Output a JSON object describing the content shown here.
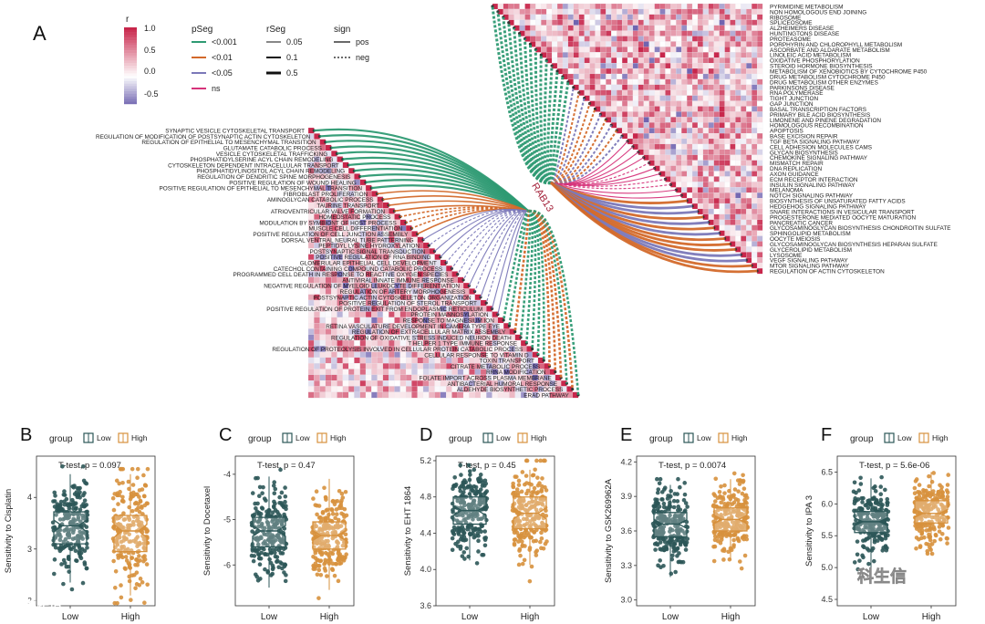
{
  "panel_a": {
    "letter": "A",
    "center_label": "RAB13",
    "legends": {
      "r": {
        "title": "r",
        "ticks": [
          "1.0",
          "0.5",
          "0.0",
          "-0.5"
        ]
      },
      "pSeg": {
        "title": "pSeg",
        "items": [
          {
            "label": "<0.001",
            "color": "#2e9a73"
          },
          {
            "label": "<0.01",
            "color": "#d3692a"
          },
          {
            "label": "<0.05",
            "color": "#7b78b8"
          },
          {
            "label": "ns",
            "color": "#d6337a"
          }
        ]
      },
      "rSeg": {
        "title": "rSeg",
        "items": [
          "0.05",
          "0.1",
          "0.5"
        ]
      },
      "sign": {
        "title": "sign",
        "items": [
          "pos",
          "neg"
        ]
      }
    },
    "left_terms": [
      "SYNAPTIC VESICLE CYTOSKELETAL TRANSPORT",
      "REGULATION OF MODIFICATION OF POSTSYNAPTIC ACTIN CYTOSKELETON",
      "REGULATION OF EPITHELIAL TO MESENCHYMAL TRANSITION",
      "GLUTAMATE CATABOLIC PROCESS",
      "VESICLE CYTOSKELETAL TRAFFICKING",
      "PHOSPHATIDYLSERINE ACYL CHAIN REMODELING",
      "CYTOSKELETON DEPENDENT INTRACELLULAR TRANSPORT",
      "PHOSPHATIDYLINOSITOL ACYL CHAIN REMODELING",
      "REGULATION OF DENDRITIC SPINE MORPHOGENESIS",
      "POSITIVE REGULATION OF WOUND HEALING",
      "POSITIVE REGULATION OF EPITHELIAL TO MESENCHYMAL TRANSITION",
      "FIBROBLAST PROLIFERATION",
      "AMINOGLYCAN CATABOLIC PROCESS",
      "TAURINE TRANSPORT",
      "ATRIOVENTRICULAR VALVE FORMATION",
      "HOMEOSTATIC PROCESS",
      "MODULATION BY SYMBIONT OF HOST PROCESS",
      "MUSCLE CELL DIFFERENTIATION",
      "POSITIVE REGULATION OF CELL JUNCTION ASSEMBLY",
      "DORSAL VENTRAL NEURAL TUBE PATTERNING",
      "PEPTIDYL LYSINE HYDROXYLATION",
      "POSTSYNAPTIC SIGNAL TRANSDUCTION",
      "POSITIVE REGULATION OF RNA BINDING",
      "GLOMERULAR EPITHELIAL CELL DEVELOPMENT",
      "CATECHOL CONTAINING COMPOUND CATABOLIC PROCESS",
      "PROGRAMMED CELL DEATH IN RESPONSE TO REACTIVE OXYGEN SPECIES",
      "ANTIVIRAL INNATE IMMUNE RESPONSE",
      "NEGATIVE REGULATION OF MYELOID LEUKOCYTE DIFFERENTIATION",
      "REGULATION OF ARTERY MORPHOGENESIS",
      "POSTSYNAPTIC ACTIN CYTOSKELETON ORGANIZATION",
      "POSITIVE REGULATION OF STEROL TRANSPORT",
      "POSITIVE REGULATION OF PROTEIN EXIT FROM ENDOPLASMIC RETICULUM",
      "PROTEIN MANNOSYLATION",
      "RESPONSE TO MAGNESIUM ION",
      "RETINA VASCULATURE DEVELOPMENT IN CAMERA TYPE EYE",
      "REGULATION OF EXTRACELLULAR MATRIX ASSEMBLY",
      "REGULATION OF OXIDATIVE STRESS INDUCED NEURON DEATH",
      "T HELPER 1 TYPE IMMUNE RESPONSE",
      "REGULATION OF PROTEOLYSIS INVOLVED IN CELLULAR PROTEIN CATABOLIC PROCESS",
      "CELLULAR RESPONSE TO VITAMIN D",
      "TOXIN TRANSPORT",
      "CITRATE METABOLIC PROCESS",
      "RRNA MODIFICATION",
      "FOLATE IMPORT ACROSS PLASMA MEMBRANE",
      "ANTIBACTERIAL HUMORAL RESPONSE",
      "ALDEHYDE BIOSYNTHETIC PROCESS",
      "ERAD PATHWAY"
    ],
    "right_terms": [
      "PYRIMIDINE METABOLISM",
      "NON HOMOLOGOUS END JOINING",
      "RIBOSOME",
      "SPLICEOSOME",
      "ALZHEIMERS DISEASE",
      "HUNTINGTONS DISEASE",
      "PROTEASOME",
      "PORPHYRIN AND CHLOROPHYLL METABOLISM",
      "ASCORBATE AND ALDARATE METABOLISM",
      "LINOLEIC ACID METABOLISM",
      "OXIDATIVE PHOSPHORYLATION",
      "STEROID HORMONE BIOSYNTHESIS",
      "METABOLISM OF XENOBIOTICS BY CYTOCHROME P450",
      "DRUG METABOLISM CYTOCHROME P450",
      "DRUG METABOLISM OTHER ENZYMES",
      "PARKINSONS DISEASE",
      "RNA POLYMERASE",
      "TIGHT JUNCTION",
      "GAP JUNCTION",
      "BASAL TRANSCRIPTION FACTORS",
      "PRIMARY BILE ACID BIOSYNTHESIS",
      "LIMONENE AND PINENE DEGRADATION",
      "HOMOLOGOUS RECOMBINATION",
      "APOPTOSIS",
      "BASE EXCISION REPAIR",
      "TGF BETA SIGNALING PATHWAY",
      "CELL ADHESION MOLECULES CAMS",
      "GLYCAN BIOSYNTHESIS",
      "CHEMOKINE SIGNALING PATHWAY",
      "MISMATCH REPAIR",
      "DNA REPLICATION",
      "AXON GUIDANCE",
      "ECM RECEPTOR INTERACTION",
      "INSULIN SIGNALING PATHWAY",
      "MELANOMA",
      "NOTCH SIGNALING PATHWAY",
      "BIOSYNTHESIS OF UNSATURATED FATTY ACIDS",
      "HEDGEHOG SIGNALING PATHWAY",
      "SNARE INTERACTIONS IN VESICULAR TRANSPORT",
      "PROGESTERONE MEDIATED OOCYTE MATURATION",
      "PANCREATIC CANCER",
      "GLYCOSAMINOGLYCAN BIOSYNTHESIS CHONDROITIN SULFATE",
      "SPHINGOLIPID METABOLISM",
      "OOCYTE MEIOSIS",
      "GLYCOSAMINOGLYCAN BIOSYNTHESIS HEPARAN SULFATE",
      "GLYCEROLIPID METABOLISM",
      "LYSOSOME",
      "VEGF SIGNALING PATHWAY",
      "MTOR SIGNALING PATHWAY",
      "REGULATION OF ACTIN CYTOSKELETON"
    ]
  },
  "box_panels": [
    {
      "letter": "B",
      "ylabel": "Sensitivity to Cisplatin",
      "test": "T-test, p = 0.097",
      "yticks": [
        "4",
        "3",
        "2"
      ],
      "ylim": [
        1.9,
        4.8
      ],
      "low": {
        "q1": 3.1,
        "med": 3.45,
        "q3": 3.72,
        "wlo": 2.35,
        "whi": 4.45,
        "min": 2.1,
        "max": 4.6
      },
      "high": {
        "q1": 2.95,
        "med": 3.35,
        "q3": 3.65,
        "wlo": 2.1,
        "whi": 4.45,
        "min": 1.95,
        "max": 4.55
      }
    },
    {
      "letter": "C",
      "ylabel": "Sensitivity to Docetaxel",
      "test": "T-test, p = 0.47",
      "yticks": [
        "-4",
        "-5",
        "-6"
      ],
      "ylim": [
        -6.9,
        -3.6
      ],
      "low": {
        "q1": -5.6,
        "med": -5.25,
        "q3": -4.95,
        "wlo": -6.5,
        "whi": -4.05,
        "min": -6.6,
        "max": -3.9
      },
      "high": {
        "q1": -5.65,
        "med": -5.35,
        "q3": -5.05,
        "wlo": -6.55,
        "whi": -4.1,
        "min": -6.75,
        "max": -3.85
      }
    },
    {
      "letter": "D",
      "ylabel": "Sensitivity to EHT 1864",
      "test": "T-test, p = 0.45",
      "yticks": [
        "5.2",
        "4.8",
        "4.4",
        "4.0",
        "3.6"
      ],
      "ylim": [
        3.6,
        5.25
      ],
      "low": {
        "q1": 4.5,
        "med": 4.65,
        "q3": 4.8,
        "wlo": 4.1,
        "whi": 5.1,
        "min": 3.9,
        "max": 5.15
      },
      "high": {
        "q1": 4.45,
        "med": 4.62,
        "q3": 4.8,
        "wlo": 4.05,
        "whi": 5.1,
        "min": 3.7,
        "max": 5.2
      }
    },
    {
      "letter": "E",
      "ylabel": "Sensitivity to GSK269962A",
      "test": "T-test, p = 0.0074",
      "yticks": [
        "4.2",
        "3.9",
        "3.6",
        "3.3",
        "3.0"
      ],
      "ylim": [
        2.95,
        4.25
      ],
      "low": {
        "q1": 3.55,
        "med": 3.66,
        "q3": 3.76,
        "wlo": 3.2,
        "whi": 4.0,
        "min": 3.0,
        "max": 4.05
      },
      "high": {
        "q1": 3.6,
        "med": 3.7,
        "q3": 3.8,
        "wlo": 3.35,
        "whi": 4.05,
        "min": 3.2,
        "max": 4.1
      }
    },
    {
      "letter": "F",
      "ylabel": "Sensitivity to IPA 3",
      "test": "T-test, p = 5.6e-06",
      "yticks": [
        "6.5",
        "6.0",
        "5.5",
        "5.0",
        "4.5"
      ],
      "ylim": [
        4.4,
        6.75
      ],
      "low": {
        "q1": 5.55,
        "med": 5.72,
        "q3": 5.88,
        "wlo": 5.0,
        "whi": 6.4,
        "min": 4.55,
        "max": 6.55
      },
      "high": {
        "q1": 5.7,
        "med": 5.85,
        "q3": 6.05,
        "wlo": 5.2,
        "whi": 6.5,
        "min": 5.0,
        "max": 6.65
      }
    }
  ],
  "legend_box": {
    "title": "group",
    "low_label": "Low",
    "high_label": "High",
    "low_color": "#2c5758",
    "high_color": "#d7913d"
  },
  "colors": {
    "heat_pos": "#c8264b",
    "heat_neg": "#7064b0",
    "bg_neutral": "#ffffff"
  },
  "watermarks": {
    "left": "大数跨境",
    "right": "科生信"
  }
}
